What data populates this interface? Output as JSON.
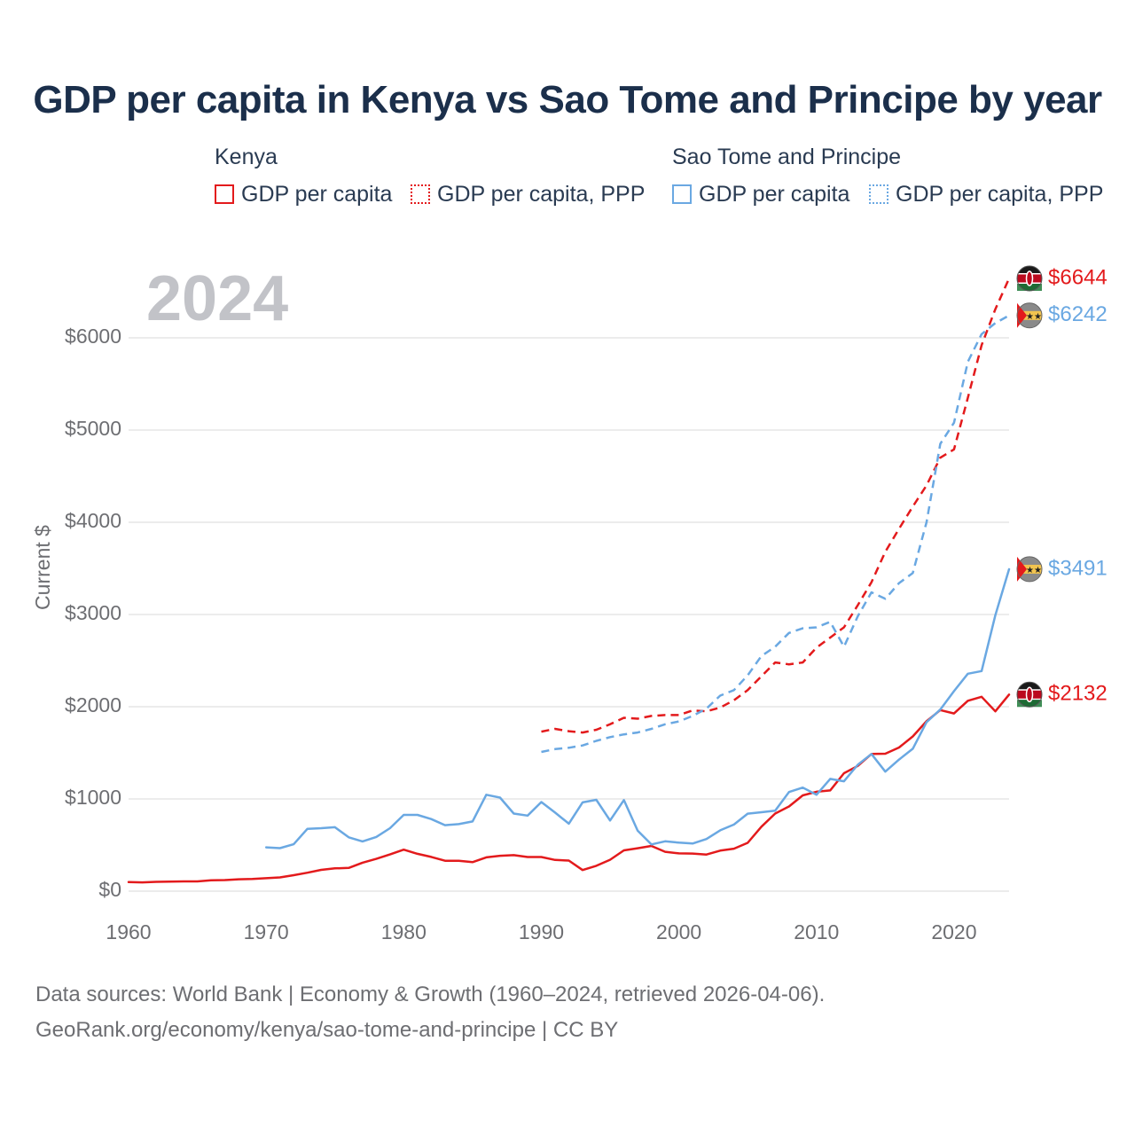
{
  "title": "GDP per capita in Kenya vs Sao Tome and Principe by year",
  "year_overlay": "2024",
  "legend": {
    "groups": [
      {
        "label": "Kenya",
        "items": [
          {
            "label": "GDP per capita",
            "color": "#e31a1c",
            "style": "solid"
          },
          {
            "label": "GDP per capita, PPP",
            "color": "#e31a1c",
            "style": "dotted"
          }
        ]
      },
      {
        "label": "Sao Tome and Principe",
        "items": [
          {
            "label": "GDP per capita",
            "color": "#6aa8e2",
            "style": "solid"
          },
          {
            "label": "GDP per capita, PPP",
            "color": "#6aa8e2",
            "style": "dotted"
          }
        ]
      }
    ]
  },
  "source": {
    "line1": "Data sources: World Bank | Economy & Growth (1960–2024, retrieved 2026-04-06).",
    "line2": "GeoRank.org/economy/kenya/sao-tome-and-principe | CC BY"
  },
  "chart_data": {
    "type": "line",
    "title": "GDP per capita in Kenya vs Sao Tome and Principe by year",
    "ylabel": "Current $",
    "xlabel": "",
    "xlim": [
      1960,
      2024
    ],
    "ylim": [
      0,
      6644
    ],
    "x_ticks": [
      1960,
      1970,
      1980,
      1990,
      2000,
      2010,
      2020
    ],
    "y_ticks": [
      {
        "value": 0,
        "label": "$0"
      },
      {
        "value": 1000,
        "label": "$1000"
      },
      {
        "value": 2000,
        "label": "$2000"
      },
      {
        "value": 3000,
        "label": "$3000"
      },
      {
        "value": 4000,
        "label": "$4000"
      },
      {
        "value": 5000,
        "label": "$5000"
      },
      {
        "value": 6000,
        "label": "$6000"
      }
    ],
    "grid": true,
    "series": [
      {
        "name": "Kenya GDP per capita",
        "country": "Kenya",
        "color": "#e31a1c",
        "dashed": false,
        "end_label": "$2132",
        "points": [
          [
            1960,
            98
          ],
          [
            1961,
            95
          ],
          [
            1962,
            101
          ],
          [
            1963,
            104
          ],
          [
            1964,
            106
          ],
          [
            1965,
            106
          ],
          [
            1966,
            117
          ],
          [
            1967,
            120
          ],
          [
            1968,
            129
          ],
          [
            1969,
            133
          ],
          [
            1970,
            140
          ],
          [
            1971,
            149
          ],
          [
            1972,
            173
          ],
          [
            1973,
            200
          ],
          [
            1974,
            231
          ],
          [
            1975,
            247
          ],
          [
            1976,
            252
          ],
          [
            1977,
            309
          ],
          [
            1978,
            350
          ],
          [
            1979,
            398
          ],
          [
            1980,
            450
          ],
          [
            1981,
            405
          ],
          [
            1982,
            371
          ],
          [
            1983,
            330
          ],
          [
            1984,
            330
          ],
          [
            1985,
            314
          ],
          [
            1986,
            366
          ],
          [
            1987,
            384
          ],
          [
            1988,
            390
          ],
          [
            1989,
            370
          ],
          [
            1990,
            370
          ],
          [
            1991,
            338
          ],
          [
            1992,
            332
          ],
          [
            1993,
            229
          ],
          [
            1994,
            275
          ],
          [
            1995,
            340
          ],
          [
            1996,
            442
          ],
          [
            1997,
            465
          ],
          [
            1998,
            490
          ],
          [
            1999,
            427
          ],
          [
            2000,
            410
          ],
          [
            2001,
            408
          ],
          [
            2002,
            397
          ],
          [
            2003,
            439
          ],
          [
            2004,
            461
          ],
          [
            2005,
            524
          ],
          [
            2006,
            699
          ],
          [
            2007,
            841
          ],
          [
            2008,
            918
          ],
          [
            2009,
            1038
          ],
          [
            2010,
            1078
          ],
          [
            2011,
            1092
          ],
          [
            2012,
            1279
          ],
          [
            2013,
            1358
          ],
          [
            2014,
            1487
          ],
          [
            2015,
            1490
          ],
          [
            2016,
            1558
          ],
          [
            2017,
            1678
          ],
          [
            2018,
            1842
          ],
          [
            2019,
            1963
          ],
          [
            2020,
            1927
          ],
          [
            2021,
            2064
          ],
          [
            2022,
            2108
          ],
          [
            2023,
            1950
          ],
          [
            2024,
            2132
          ]
        ]
      },
      {
        "name": "Kenya GDP per capita, PPP",
        "country": "Kenya",
        "color": "#e31a1c",
        "dashed": true,
        "end_label": "$6644",
        "points": [
          [
            1990,
            1730
          ],
          [
            1991,
            1760
          ],
          [
            1992,
            1735
          ],
          [
            1993,
            1720
          ],
          [
            1994,
            1750
          ],
          [
            1995,
            1810
          ],
          [
            1996,
            1880
          ],
          [
            1997,
            1870
          ],
          [
            1998,
            1900
          ],
          [
            1999,
            1910
          ],
          [
            2000,
            1910
          ],
          [
            2001,
            1960
          ],
          [
            2002,
            1950
          ],
          [
            2003,
            1990
          ],
          [
            2004,
            2070
          ],
          [
            2005,
            2180
          ],
          [
            2006,
            2330
          ],
          [
            2007,
            2480
          ],
          [
            2008,
            2460
          ],
          [
            2009,
            2480
          ],
          [
            2010,
            2640
          ],
          [
            2011,
            2750
          ],
          [
            2012,
            2860
          ],
          [
            2013,
            3100
          ],
          [
            2014,
            3350
          ],
          [
            2015,
            3680
          ],
          [
            2016,
            3930
          ],
          [
            2017,
            4170
          ],
          [
            2018,
            4400
          ],
          [
            2019,
            4700
          ],
          [
            2020,
            4790
          ],
          [
            2021,
            5350
          ],
          [
            2022,
            5920
          ],
          [
            2023,
            6310
          ],
          [
            2024,
            6644
          ]
        ]
      },
      {
        "name": "Sao Tome and Principe GDP per capita",
        "country": "Sao Tome and Principe",
        "color": "#6aa8e2",
        "dashed": false,
        "end_label": "$3491",
        "points": [
          [
            1970,
            475
          ],
          [
            1971,
            466
          ],
          [
            1972,
            509
          ],
          [
            1973,
            676
          ],
          [
            1974,
            683
          ],
          [
            1975,
            693
          ],
          [
            1976,
            584
          ],
          [
            1977,
            539
          ],
          [
            1978,
            587
          ],
          [
            1979,
            683
          ],
          [
            1980,
            827
          ],
          [
            1981,
            827
          ],
          [
            1982,
            782
          ],
          [
            1983,
            715
          ],
          [
            1984,
            727
          ],
          [
            1985,
            756
          ],
          [
            1986,
            1045
          ],
          [
            1987,
            1014
          ],
          [
            1988,
            841
          ],
          [
            1989,
            819
          ],
          [
            1990,
            966
          ],
          [
            1991,
            852
          ],
          [
            1992,
            732
          ],
          [
            1993,
            962
          ],
          [
            1994,
            990
          ],
          [
            1995,
            766
          ],
          [
            1996,
            987
          ],
          [
            1997,
            656
          ],
          [
            1998,
            507
          ],
          [
            1999,
            540
          ],
          [
            2000,
            526
          ],
          [
            2001,
            516
          ],
          [
            2002,
            565
          ],
          [
            2003,
            660
          ],
          [
            2004,
            722
          ],
          [
            2005,
            840
          ],
          [
            2006,
            856
          ],
          [
            2007,
            872
          ],
          [
            2008,
            1075
          ],
          [
            2009,
            1123
          ],
          [
            2010,
            1045
          ],
          [
            2011,
            1217
          ],
          [
            2012,
            1191
          ],
          [
            2013,
            1370
          ],
          [
            2014,
            1487
          ],
          [
            2015,
            1296
          ],
          [
            2016,
            1427
          ],
          [
            2017,
            1544
          ],
          [
            2018,
            1833
          ],
          [
            2019,
            1969
          ],
          [
            2020,
            2169
          ],
          [
            2021,
            2358
          ],
          [
            2022,
            2386
          ],
          [
            2023,
            2992
          ],
          [
            2024,
            3491
          ]
        ]
      },
      {
        "name": "Sao Tome and Principe GDP per capita, PPP",
        "country": "Sao Tome and Principe",
        "color": "#6aa8e2",
        "dashed": true,
        "end_label": "$6242",
        "points": [
          [
            1990,
            1510
          ],
          [
            1991,
            1540
          ],
          [
            1992,
            1555
          ],
          [
            1993,
            1580
          ],
          [
            1994,
            1630
          ],
          [
            1995,
            1670
          ],
          [
            1996,
            1700
          ],
          [
            1997,
            1720
          ],
          [
            1998,
            1760
          ],
          [
            1999,
            1810
          ],
          [
            2000,
            1840
          ],
          [
            2001,
            1900
          ],
          [
            2002,
            1980
          ],
          [
            2003,
            2120
          ],
          [
            2004,
            2180
          ],
          [
            2005,
            2340
          ],
          [
            2006,
            2550
          ],
          [
            2007,
            2650
          ],
          [
            2008,
            2800
          ],
          [
            2009,
            2850
          ],
          [
            2010,
            2860
          ],
          [
            2011,
            2920
          ],
          [
            2012,
            2650
          ],
          [
            2013,
            2980
          ],
          [
            2014,
            3240
          ],
          [
            2015,
            3170
          ],
          [
            2016,
            3340
          ],
          [
            2017,
            3450
          ],
          [
            2018,
            4000
          ],
          [
            2019,
            4850
          ],
          [
            2020,
            5080
          ],
          [
            2021,
            5740
          ],
          [
            2022,
            6040
          ],
          [
            2023,
            6160
          ],
          [
            2024,
            6242
          ]
        ]
      }
    ]
  }
}
